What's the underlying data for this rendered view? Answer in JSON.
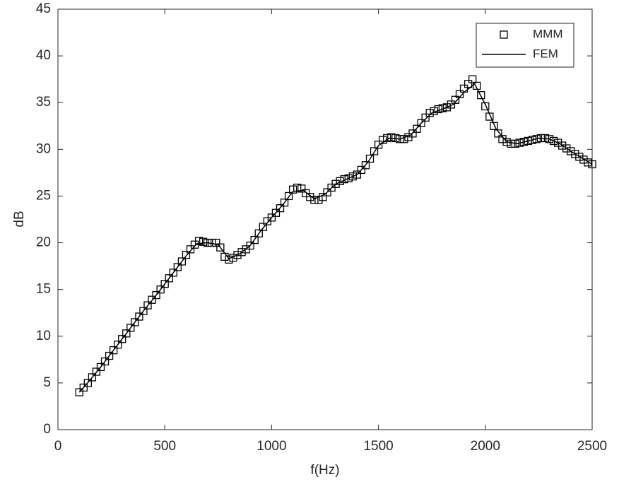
{
  "chart_data": {
    "type": "scatter-line",
    "xlabel": "f(Hz)",
    "ylabel": "dB",
    "xlim": [
      0,
      2500
    ],
    "xticks": [
      0,
      500,
      1000,
      1500,
      2000,
      2500
    ],
    "ylim": [
      0,
      45
    ],
    "yticks": [
      0,
      5,
      10,
      15,
      20,
      25,
      30,
      35,
      40,
      45
    ],
    "grid": false,
    "legend": "upper right",
    "series": [
      {
        "name": "MMM",
        "color": "#000000",
        "marker": "square",
        "x": [
          100,
          120,
          140,
          160,
          180,
          200,
          220,
          240,
          260,
          280,
          300,
          320,
          340,
          360,
          380,
          400,
          420,
          440,
          460,
          480,
          500,
          520,
          540,
          560,
          580,
          600,
          620,
          640,
          660,
          680,
          700,
          720,
          740,
          760,
          780,
          800,
          820,
          840,
          860,
          880,
          900,
          920,
          940,
          960,
          980,
          1000,
          1020,
          1040,
          1060,
          1080,
          1100,
          1120,
          1140,
          1160,
          1180,
          1200,
          1220,
          1240,
          1260,
          1280,
          1300,
          1320,
          1340,
          1360,
          1380,
          1400,
          1420,
          1440,
          1460,
          1480,
          1500,
          1520,
          1540,
          1560,
          1580,
          1600,
          1620,
          1640,
          1660,
          1680,
          1700,
          1720,
          1740,
          1760,
          1780,
          1800,
          1820,
          1840,
          1860,
          1880,
          1900,
          1920,
          1940,
          1960,
          1980,
          2000,
          2020,
          2040,
          2060,
          2080,
          2100,
          2120,
          2140,
          2160,
          2180,
          2200,
          2220,
          2240,
          2260,
          2280,
          2300,
          2320,
          2340,
          2360,
          2380,
          2400,
          2420,
          2440,
          2460,
          2480,
          2500
        ],
        "values": [
          4.0,
          4.5,
          5.0,
          5.6,
          6.2,
          6.7,
          7.3,
          7.9,
          8.5,
          9.1,
          9.7,
          10.3,
          10.9,
          11.5,
          12.1,
          12.7,
          13.3,
          13.9,
          14.4,
          15.0,
          15.6,
          16.2,
          16.8,
          17.4,
          18.0,
          18.7,
          19.3,
          19.8,
          20.2,
          20.1,
          20.0,
          20.0,
          20.0,
          19.5,
          18.5,
          18.2,
          18.4,
          18.7,
          19.0,
          19.3,
          19.7,
          20.3,
          21.0,
          21.7,
          22.3,
          22.7,
          23.2,
          23.7,
          24.3,
          25.0,
          25.7,
          25.9,
          25.8,
          25.3,
          24.9,
          24.6,
          24.6,
          24.9,
          25.4,
          25.9,
          26.3,
          26.6,
          26.8,
          26.9,
          27.1,
          27.3,
          27.8,
          28.3,
          29.0,
          29.8,
          30.5,
          31.0,
          31.2,
          31.3,
          31.2,
          31.1,
          31.1,
          31.3,
          31.7,
          32.2,
          32.8,
          33.4,
          33.9,
          34.1,
          34.3,
          34.4,
          34.5,
          34.8,
          35.3,
          35.9,
          36.5,
          37.0,
          37.5,
          36.8,
          35.8,
          34.6,
          33.5,
          32.5,
          31.7,
          31.1,
          30.8,
          30.6,
          30.6,
          30.7,
          30.8,
          30.9,
          31.0,
          31.1,
          31.2,
          31.2,
          31.1,
          30.9,
          30.7,
          30.4,
          30.1,
          29.8,
          29.5,
          29.2,
          28.9,
          28.6,
          28.4
        ]
      },
      {
        "name": "FEM",
        "color": "#000000",
        "marker": "line",
        "x": [
          100,
          150,
          200,
          250,
          300,
          350,
          400,
          450,
          500,
          550,
          600,
          650,
          700,
          750,
          800,
          850,
          900,
          950,
          1000,
          1050,
          1100,
          1150,
          1200,
          1250,
          1300,
          1350,
          1400,
          1450,
          1500,
          1550,
          1600,
          1650,
          1700,
          1750,
          1800,
          1850,
          1900,
          1950,
          2000,
          2050,
          2100,
          2150,
          2200,
          2250,
          2300,
          2350,
          2400,
          2450,
          2500
        ],
        "values": [
          4.0,
          5.3,
          6.7,
          8.2,
          9.7,
          11.2,
          12.7,
          14.1,
          15.6,
          17.1,
          18.6,
          19.9,
          20.0,
          19.8,
          18.3,
          18.8,
          19.7,
          21.3,
          22.7,
          24.0,
          25.5,
          25.6,
          24.7,
          25.2,
          26.3,
          26.8,
          27.3,
          28.6,
          30.4,
          31.2,
          31.1,
          31.5,
          32.8,
          33.9,
          34.3,
          34.8,
          36.1,
          37.0,
          34.8,
          32.2,
          30.8,
          30.6,
          30.9,
          31.2,
          31.1,
          30.6,
          29.8,
          29.1,
          28.4
        ]
      }
    ]
  }
}
